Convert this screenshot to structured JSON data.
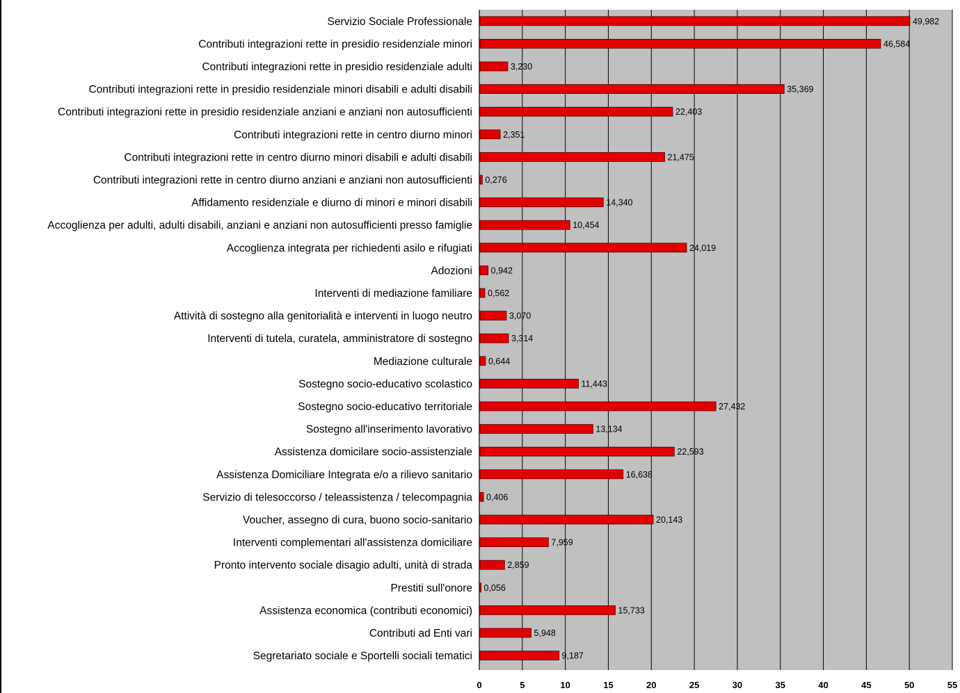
{
  "chart_data": {
    "type": "bar",
    "orientation": "horizontal",
    "categories": [
      "Servizio Sociale Professionale",
      "Contributi integrazioni rette in presidio residenziale minori",
      "Contributi integrazioni rette in presidio  residenziale adulti",
      "Contributi integrazioni rette in presidio  residenziale minori disabili  e adulti disabili",
      "Contributi  integrazioni rette in presidio  residenziale anziani e anziani non autosufficienti",
      "Contributi integrazioni rette in centro diurno minori",
      "Contributi integrazioni rette in centro diurno minori disabili e adulti disabili",
      "Contributi  integrazioni rette  in centro diurno anziani e  anziani non autosufficienti",
      "Affidamento residenziale e diurno di minori e minori disabili",
      "Accoglienza per adulti, adulti disabili, anziani e anziani non autosufficienti presso famiglie",
      "Accoglienza integrata per richiedenti asilo e rifugiati",
      "Adozioni",
      "Interventi di mediazione familiare",
      "Attività di sostegno alla genitorialità e interventi in luogo neutro",
      "Interventi di tutela, curatela, amministratore di sostegno",
      "Mediazione culturale",
      "Sostegno socio-educativo scolastico",
      "Sostegno socio-educativo territoriale",
      "Sostegno all'inserimento lavorativo",
      "Assistenza domicilare socio-assistenziale",
      "Assistenza Domiciliare Integrata e/o a rilievo sanitario",
      "Servizio di telesoccorso / teleassistenza / telecompagnia",
      "Voucher, assegno di cura, buono socio-sanitario",
      "Interventi complementari all'assistenza domiciliare",
      "Pronto intervento sociale disagio adulti, unità di strada",
      "Prestiti sull'onore",
      "Assistenza economica (contributi economici)",
      "Contributi ad Enti vari",
      "Segretariato sociale e Sportelli sociali tematici"
    ],
    "values": [
      49.982,
      46.584,
      3.23,
      35.369,
      22.403,
      2.351,
      21.475,
      0.276,
      14.34,
      10.454,
      24.019,
      0.942,
      0.562,
      3.07,
      3.314,
      0.644,
      11.443,
      27.432,
      13.134,
      22.593,
      16.638,
      0.406,
      20.143,
      7.959,
      2.859,
      0.056,
      15.733,
      5.948,
      9.187
    ],
    "value_labels": [
      "49,982",
      "46,584",
      "3,230",
      "35,369",
      "22,403",
      "2,351",
      "21,475",
      "0,276",
      "14,340",
      "10,454",
      "24,019",
      "0,942",
      "0,562",
      "3,070",
      "3,314",
      "0,644",
      "11,443",
      "27,432",
      "13,134",
      "22,593",
      "16,638",
      "0,406",
      "20,143",
      "7,959",
      "2,859",
      "0,056",
      "15,733",
      "5,948",
      "9,187"
    ],
    "xticks": [
      "0",
      "5",
      "10",
      "15",
      "20",
      "25",
      "30",
      "35",
      "40",
      "45",
      "50",
      "55"
    ],
    "xlim": [
      0,
      55
    ],
    "grid": "vertical",
    "legend": "none",
    "colors": {
      "bar": "#e00000",
      "bar_border": "#5a0000",
      "plot_bg": "#c0c0c0",
      "grid": "#000000"
    }
  }
}
